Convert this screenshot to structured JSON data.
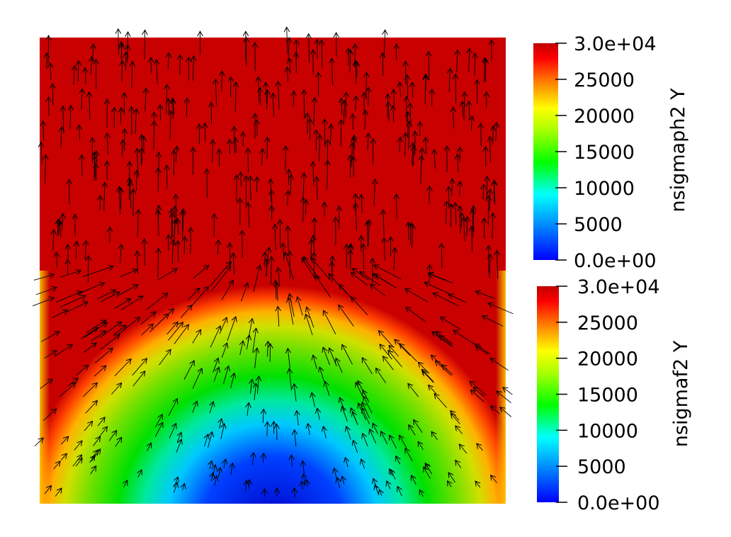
{
  "colorbars": [
    {
      "title": "nsigmaph2 Y",
      "range": [
        0,
        30000
      ],
      "labels": [
        "3.0e+04",
        "25000",
        "20000",
        "15000",
        "10000",
        "5000",
        "0.0e+00"
      ],
      "colormap": [
        "#0000ff",
        "#00a0ff",
        "#00ffff",
        "#00ff00",
        "#aaff00",
        "#ffff00",
        "#ff8000",
        "#ff0000",
        "#c00000"
      ]
    },
    {
      "title": "nsigmaf2 Y",
      "range": [
        0,
        30000
      ],
      "labels": [
        "3.0e+04",
        "25000",
        "20000",
        "15000",
        "10000",
        "5000",
        "0.0e+00"
      ],
      "colormap": [
        "#0000ff",
        "#00a0ff",
        "#00ffff",
        "#00ff00",
        "#aaff00",
        "#ffff00",
        "#ff8000",
        "#ff0000",
        "#c00000"
      ]
    }
  ],
  "field": {
    "upper_region_color": "#c80000",
    "arrow_color": "#000000"
  }
}
